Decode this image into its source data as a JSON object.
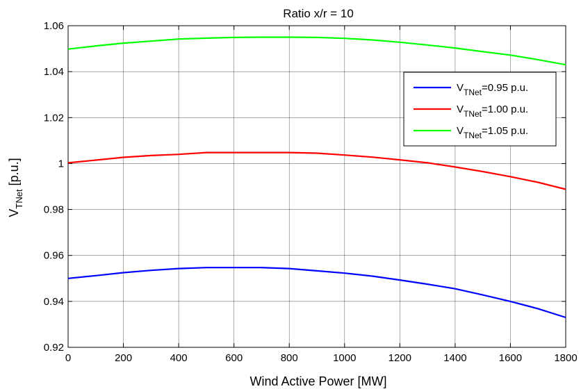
{
  "chart_data": {
    "type": "line",
    "title": "Ratio x/r = 10",
    "xlabel": "Wind Active Power [MW]",
    "ylabel": {
      "main": "V",
      "sub": "TNet",
      "suffix": " [p.u.]"
    },
    "xlim": [
      0,
      1800
    ],
    "ylim": [
      0.92,
      1.06
    ],
    "xticks": [
      0,
      200,
      400,
      600,
      800,
      1000,
      1200,
      1400,
      1600,
      1800
    ],
    "yticks": [
      0.92,
      0.94,
      0.96,
      0.98,
      1.0,
      1.02,
      1.04,
      1.06
    ],
    "ytick_labels": [
      "0.92",
      "0.94",
      "0.96",
      "0.98",
      "1",
      "1.02",
      "1.04",
      "1.06"
    ],
    "grid": true,
    "legend_position": "right",
    "x": [
      0,
      100,
      200,
      300,
      400,
      500,
      600,
      700,
      800,
      900,
      1000,
      1100,
      1200,
      1300,
      1400,
      1500,
      1600,
      1700,
      1800
    ],
    "series": [
      {
        "name": {
          "main": "V",
          "sub": "TNet",
          "suffix": "=0.95 p.u."
        },
        "color": "#0000ff",
        "values": [
          0.95,
          0.9512,
          0.9525,
          0.9535,
          0.9543,
          0.9547,
          0.9547,
          0.9547,
          0.9543,
          0.9533,
          0.9523,
          0.951,
          0.9493,
          0.9475,
          0.9455,
          0.9428,
          0.94,
          0.9368,
          0.933
        ]
      },
      {
        "name": {
          "main": "V",
          "sub": "TNet",
          "suffix": "=1.00 p.u."
        },
        "color": "#ff0000",
        "values": [
          1.0003,
          1.0015,
          1.0027,
          1.0035,
          1.004,
          1.0048,
          1.0048,
          1.0048,
          1.0048,
          1.0045,
          1.0037,
          1.0028,
          1.0016,
          1.0003,
          0.9985,
          0.9965,
          0.9943,
          0.9918,
          0.9888
        ]
      },
      {
        "name": {
          "main": "V",
          "sub": "TNet",
          "suffix": "=1.05 p.u."
        },
        "color": "#00ff00",
        "values": [
          1.0498,
          1.0512,
          1.0524,
          1.0533,
          1.0542,
          1.0546,
          1.0549,
          1.055,
          1.055,
          1.0549,
          1.0545,
          1.0538,
          1.0528,
          1.0516,
          1.0503,
          1.0487,
          1.0472,
          1.0452,
          1.043
        ]
      }
    ]
  }
}
